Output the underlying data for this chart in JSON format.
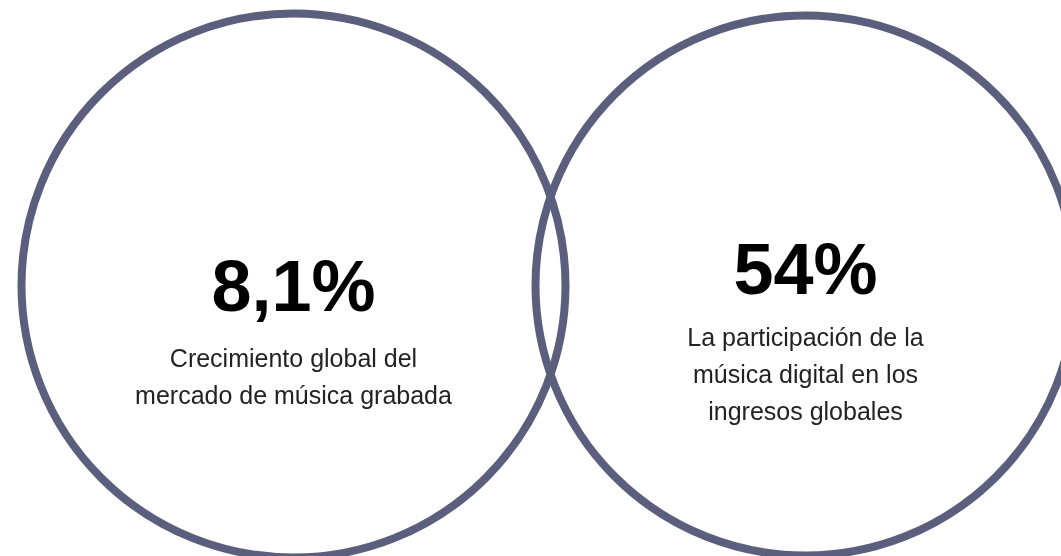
{
  "chart_data": {
    "type": "other",
    "categories": [
      "Crecimiento global del\nmercado de música grabada",
      "La participación de la\nmúsica digital en los\ningresos globales"
    ],
    "values": [
      8.1,
      54
    ],
    "value_labels": [
      "8,1%",
      "54%"
    ],
    "color": "#5b5e7c"
  }
}
